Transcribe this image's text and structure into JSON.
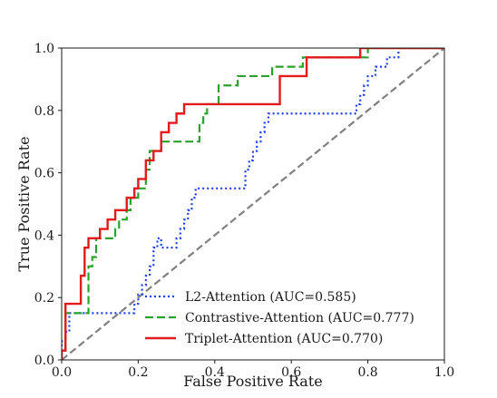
{
  "chart_data": {
    "type": "line",
    "xlabel": "False Positive Rate",
    "ylabel": "True Positive Rate",
    "xlim": [
      0.0,
      1.0
    ],
    "ylim": [
      0.0,
      1.0
    ],
    "x_ticks": [
      "0.0",
      "0.2",
      "0.4",
      "0.6",
      "0.8",
      "1.0"
    ],
    "y_ticks": [
      "0.0",
      "0.2",
      "0.4",
      "0.6",
      "0.8",
      "1.0"
    ],
    "grid": false,
    "legend_position": "lower-right",
    "diagonal": {
      "x": [
        0,
        1
      ],
      "y": [
        0,
        1
      ],
      "color": "#808080",
      "style": "dashed"
    },
    "series": [
      {
        "name": "L2-Attention (AUC=0.585)",
        "color": "#1f3fe6",
        "style": "dotted",
        "x": [
          0,
          0,
          0.01,
          0.01,
          0.02,
          0.02,
          0.19,
          0.19,
          0.2,
          0.2,
          0.21,
          0.21,
          0.22,
          0.22,
          0.23,
          0.23,
          0.24,
          0.24,
          0.25,
          0.25,
          0.26,
          0.26,
          0.3,
          0.3,
          0.31,
          0.31,
          0.32,
          0.32,
          0.33,
          0.33,
          0.34,
          0.34,
          0.35,
          0.35,
          0.48,
          0.48,
          0.49,
          0.49,
          0.5,
          0.5,
          0.51,
          0.51,
          0.52,
          0.52,
          0.53,
          0.53,
          0.54,
          0.54,
          0.55,
          0.55,
          0.56,
          0.56,
          0.57,
          0.57,
          0.58,
          0.58,
          0.59,
          0.59,
          0.77,
          0.77,
          0.78,
          0.78,
          0.79,
          0.79,
          0.8,
          0.8,
          0.81,
          0.81,
          0.82,
          0.82,
          0.84,
          0.84,
          0.85,
          0.85,
          0.88,
          0.88,
          0.9,
          0.9,
          1.0
        ],
        "y": [
          0,
          0.06,
          0.06,
          0.09,
          0.09,
          0.15,
          0.15,
          0.18,
          0.18,
          0.21,
          0.21,
          0.24,
          0.24,
          0.27,
          0.27,
          0.3,
          0.3,
          0.36,
          0.36,
          0.39,
          0.39,
          0.36,
          0.36,
          0.39,
          0.39,
          0.42,
          0.42,
          0.45,
          0.45,
          0.48,
          0.48,
          0.52,
          0.52,
          0.55,
          0.55,
          0.61,
          0.61,
          0.64,
          0.64,
          0.67,
          0.67,
          0.7,
          0.7,
          0.73,
          0.73,
          0.76,
          0.76,
          0.79,
          0.79,
          0.79,
          0.79,
          0.79,
          0.79,
          0.79,
          0.79,
          0.79,
          0.79,
          0.79,
          0.79,
          0.82,
          0.82,
          0.85,
          0.85,
          0.88,
          0.88,
          0.91,
          0.91,
          0.91,
          0.91,
          0.94,
          0.94,
          0.94,
          0.94,
          0.97,
          0.97,
          1.0,
          1.0,
          1.0,
          1.0
        ]
      },
      {
        "name": "Contrastive-Attention (AUC=0.777)",
        "color": "#2ca02c",
        "style": "dashed",
        "x": [
          0,
          0,
          0.01,
          0.01,
          0.07,
          0.07,
          0.08,
          0.08,
          0.09,
          0.09,
          0.14,
          0.14,
          0.15,
          0.15,
          0.17,
          0.17,
          0.18,
          0.18,
          0.2,
          0.2,
          0.22,
          0.22,
          0.23,
          0.23,
          0.26,
          0.26,
          0.27,
          0.27,
          0.3,
          0.3,
          0.36,
          0.36,
          0.37,
          0.37,
          0.38,
          0.38,
          0.41,
          0.41,
          0.46,
          0.46,
          0.55,
          0.55,
          0.56,
          0.56,
          0.63,
          0.63,
          0.67,
          0.67,
          0.8,
          0.8,
          1.0
        ],
        "y": [
          0,
          0.03,
          0.03,
          0.15,
          0.15,
          0.3,
          0.3,
          0.33,
          0.33,
          0.39,
          0.39,
          0.42,
          0.42,
          0.45,
          0.45,
          0.48,
          0.48,
          0.52,
          0.52,
          0.55,
          0.55,
          0.61,
          0.61,
          0.67,
          0.67,
          0.7,
          0.7,
          0.7,
          0.7,
          0.7,
          0.7,
          0.76,
          0.76,
          0.79,
          0.79,
          0.82,
          0.82,
          0.88,
          0.88,
          0.91,
          0.91,
          0.94,
          0.94,
          0.94,
          0.94,
          0.97,
          0.97,
          0.97,
          0.97,
          1.0,
          1.0
        ]
      },
      {
        "name": "Triplet-Attention (AUC=0.770)",
        "color": "#e31a1c",
        "style": "solid",
        "x": [
          0,
          0,
          0.01,
          0.01,
          0.05,
          0.05,
          0.06,
          0.06,
          0.07,
          0.07,
          0.1,
          0.1,
          0.12,
          0.12,
          0.14,
          0.14,
          0.16,
          0.16,
          0.17,
          0.17,
          0.19,
          0.19,
          0.2,
          0.2,
          0.22,
          0.22,
          0.24,
          0.24,
          0.26,
          0.26,
          0.28,
          0.28,
          0.29,
          0.29,
          0.3,
          0.3,
          0.32,
          0.32,
          0.36,
          0.36,
          0.57,
          0.57,
          0.64,
          0.64,
          0.78,
          0.78,
          0.82,
          0.82,
          1.0
        ],
        "y": [
          0,
          0.03,
          0.03,
          0.18,
          0.18,
          0.27,
          0.27,
          0.36,
          0.36,
          0.39,
          0.39,
          0.42,
          0.42,
          0.45,
          0.45,
          0.48,
          0.48,
          0.48,
          0.48,
          0.52,
          0.52,
          0.55,
          0.55,
          0.58,
          0.58,
          0.64,
          0.64,
          0.67,
          0.67,
          0.73,
          0.73,
          0.76,
          0.76,
          0.76,
          0.76,
          0.79,
          0.79,
          0.82,
          0.82,
          0.82,
          0.82,
          0.91,
          0.91,
          0.97,
          0.97,
          1.0,
          1.0,
          1.0,
          1.0
        ]
      }
    ]
  }
}
